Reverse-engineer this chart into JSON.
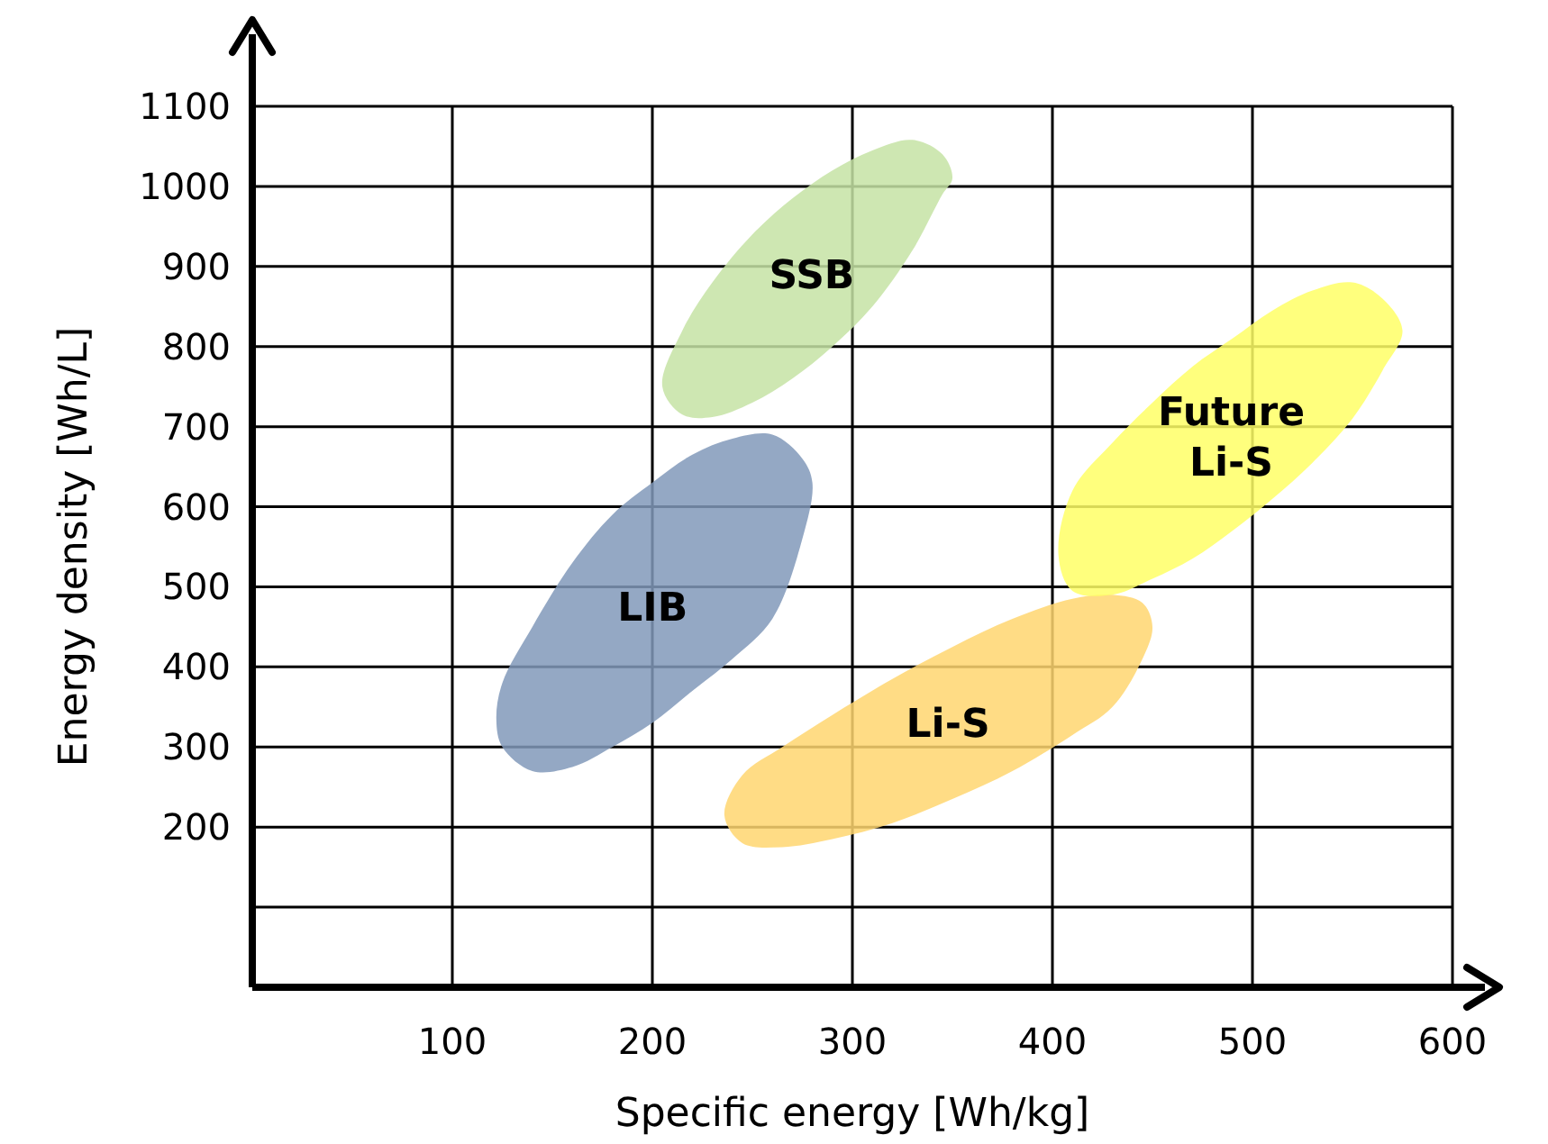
{
  "chart_data": {
    "type": "area",
    "xlabel": "Specific energy [Wh/kg]",
    "ylabel": "Energy density [Wh/L]",
    "xlim": [
      0,
      600
    ],
    "xticks": [
      100,
      200,
      300,
      400,
      500,
      600
    ],
    "ylim": [
      0,
      1100
    ],
    "yticks": [
      {
        "value": 100,
        "label": null
      },
      200,
      300,
      400,
      500,
      600,
      700,
      800,
      900,
      1000,
      1100
    ],
    "grid": true,
    "legend": false,
    "marker": "none",
    "series": [
      {
        "name": "SSB",
        "color": "#c5e3a5",
        "x": [
          205,
          215,
          230,
          250,
          270,
          290,
          310,
          330,
          345,
          350,
          345,
          330,
          310,
          290,
          270,
          250,
          230,
          215
        ],
        "values": [
          750,
          715,
          712,
          730,
          760,
          800,
          850,
          920,
          990,
          1010,
          1040,
          1058,
          1045,
          1020,
          985,
          940,
          880,
          820
        ]
      },
      {
        "name": "LIB",
        "color": "#8199ba",
        "x": [
          122,
          125,
          140,
          160,
          180,
          200,
          220,
          240,
          260,
          275,
          280,
          275,
          260,
          240,
          220,
          200,
          180,
          160,
          140,
          125
        ],
        "values": [
          335,
          300,
          270,
          275,
          300,
          330,
          370,
          410,
          460,
          560,
          630,
          660,
          690,
          685,
          665,
          630,
          590,
          530,
          450,
          380
        ]
      },
      {
        "name": "Li-S",
        "color": "#ffd670",
        "x": [
          236,
          245,
          265,
          290,
          320,
          350,
          380,
          410,
          430,
          445,
          450,
          445,
          430,
          410,
          380,
          350,
          320,
          290,
          265,
          245
        ],
        "values": [
          215,
          180,
          175,
          185,
          205,
          235,
          270,
          315,
          350,
          410,
          450,
          480,
          490,
          485,
          460,
          425,
          385,
          340,
          300,
          265
        ]
      },
      {
        "name": "Future Li-S",
        "color": "#ffff66",
        "x": [
          403,
          410,
          430,
          450,
          470,
          490,
          510,
          530,
          550,
          565,
          575,
          565,
          550,
          530,
          510,
          490,
          470,
          450,
          430,
          410
        ],
        "values": [
          540,
          495,
          490,
          510,
          535,
          570,
          610,
          655,
          710,
          770,
          820,
          860,
          880,
          870,
          845,
          810,
          775,
          730,
          680,
          620
        ]
      }
    ]
  }
}
